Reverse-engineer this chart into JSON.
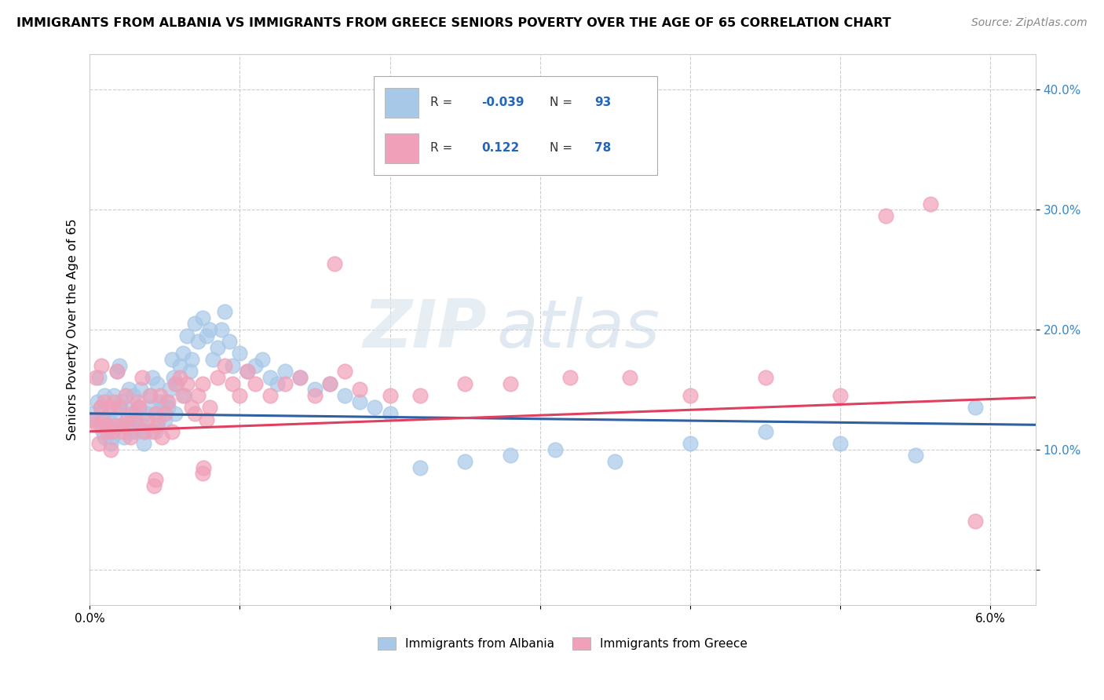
{
  "title": "IMMIGRANTS FROM ALBANIA VS IMMIGRANTS FROM GREECE SENIORS POVERTY OVER THE AGE OF 65 CORRELATION CHART",
  "source": "Source: ZipAtlas.com",
  "ylabel": "Seniors Poverty Over the Age of 65",
  "xlim": [
    0.0,
    6.3
  ],
  "ylim": [
    -3.0,
    43.0
  ],
  "yticks": [
    0.0,
    10.0,
    20.0,
    30.0,
    40.0
  ],
  "ytick_labels": [
    "",
    "10.0%",
    "20.0%",
    "30.0%",
    "40.0%"
  ],
  "xticks": [
    0.0,
    1.0,
    2.0,
    3.0,
    4.0,
    5.0,
    6.0
  ],
  "xtick_labels": [
    "0.0%",
    "",
    "",
    "",
    "",
    "",
    "6.0%"
  ],
  "legend_albania": "Immigrants from Albania",
  "legend_greece": "Immigrants from Greece",
  "R_albania": "-0.039",
  "N_albania": "93",
  "R_greece": "0.122",
  "N_greece": "78",
  "color_albania": "#a8c8e8",
  "color_greece": "#f0a0b8",
  "line_color_albania": "#3060a0",
  "line_color_greece": "#e04060",
  "watermark_zip": "ZIP",
  "watermark_atlas": "atlas",
  "albania_x": [
    0.02,
    0.04,
    0.05,
    0.06,
    0.07,
    0.08,
    0.09,
    0.1,
    0.1,
    0.12,
    0.13,
    0.14,
    0.15,
    0.16,
    0.17,
    0.18,
    0.19,
    0.2,
    0.21,
    0.22,
    0.23,
    0.24,
    0.25,
    0.26,
    0.27,
    0.28,
    0.29,
    0.3,
    0.31,
    0.32,
    0.33,
    0.34,
    0.35,
    0.36,
    0.37,
    0.38,
    0.4,
    0.41,
    0.42,
    0.44,
    0.45,
    0.46,
    0.47,
    0.48,
    0.5,
    0.51,
    0.52,
    0.53,
    0.55,
    0.56,
    0.57,
    0.58,
    0.6,
    0.62,
    0.63,
    0.65,
    0.67,
    0.68,
    0.7,
    0.72,
    0.75,
    0.78,
    0.8,
    0.82,
    0.85,
    0.88,
    0.9,
    0.93,
    0.95,
    1.0,
    1.05,
    1.1,
    1.15,
    1.2,
    1.25,
    1.3,
    1.4,
    1.5,
    1.6,
    1.7,
    1.8,
    1.9,
    2.0,
    2.2,
    2.5,
    2.8,
    3.1,
    3.5,
    4.0,
    4.5,
    5.0,
    5.5,
    5.9
  ],
  "albania_y": [
    13.0,
    12.5,
    14.0,
    16.0,
    12.0,
    13.5,
    11.5,
    14.5,
    11.0,
    12.5,
    13.0,
    10.5,
    11.0,
    14.5,
    12.5,
    16.5,
    13.5,
    17.0,
    14.0,
    12.0,
    11.0,
    13.5,
    12.5,
    15.0,
    11.5,
    12.5,
    14.5,
    13.0,
    11.5,
    12.0,
    13.5,
    15.0,
    12.0,
    10.5,
    11.5,
    13.0,
    14.5,
    13.5,
    16.0,
    11.5,
    15.5,
    12.5,
    14.0,
    13.5,
    12.5,
    14.0,
    13.5,
    15.0,
    17.5,
    16.0,
    13.0,
    15.5,
    17.0,
    18.0,
    14.5,
    19.5,
    16.5,
    17.5,
    20.5,
    19.0,
    21.0,
    19.5,
    20.0,
    17.5,
    18.5,
    20.0,
    21.5,
    19.0,
    17.0,
    18.0,
    16.5,
    17.0,
    17.5,
    16.0,
    15.5,
    16.5,
    16.0,
    15.0,
    15.5,
    14.5,
    14.0,
    13.5,
    13.0,
    8.5,
    9.0,
    9.5,
    10.0,
    9.0,
    10.5,
    11.5,
    10.5,
    9.5,
    13.5
  ],
  "greece_x": [
    0.02,
    0.04,
    0.05,
    0.06,
    0.07,
    0.08,
    0.09,
    0.1,
    0.11,
    0.12,
    0.13,
    0.14,
    0.15,
    0.16,
    0.17,
    0.18,
    0.2,
    0.21,
    0.22,
    0.24,
    0.25,
    0.27,
    0.28,
    0.3,
    0.32,
    0.33,
    0.35,
    0.36,
    0.38,
    0.4,
    0.42,
    0.44,
    0.45,
    0.47,
    0.48,
    0.5,
    0.52,
    0.55,
    0.57,
    0.6,
    0.62,
    0.65,
    0.68,
    0.7,
    0.72,
    0.75,
    0.78,
    0.8,
    0.85,
    0.9,
    0.95,
    1.0,
    1.05,
    1.1,
    1.2,
    1.3,
    1.4,
    1.5,
    1.6,
    1.7,
    1.8,
    2.0,
    2.2,
    2.5,
    2.8,
    3.2,
    3.6,
    4.0,
    4.5,
    5.0,
    5.3,
    5.6,
    5.9,
    1.63,
    0.43,
    0.44,
    0.75,
    0.76
  ],
  "greece_y": [
    12.5,
    16.0,
    12.0,
    10.5,
    13.5,
    17.0,
    12.5,
    14.0,
    12.0,
    11.5,
    13.5,
    10.0,
    11.5,
    14.0,
    12.0,
    16.5,
    13.5,
    12.0,
    11.5,
    14.5,
    12.5,
    11.0,
    13.0,
    12.5,
    14.0,
    13.5,
    16.0,
    11.5,
    12.5,
    14.5,
    11.5,
    13.0,
    12.0,
    14.5,
    11.0,
    13.0,
    14.0,
    11.5,
    15.5,
    16.0,
    14.5,
    15.5,
    13.5,
    13.0,
    14.5,
    15.5,
    12.5,
    13.5,
    16.0,
    17.0,
    15.5,
    14.5,
    16.5,
    15.5,
    14.5,
    15.5,
    16.0,
    14.5,
    15.5,
    16.5,
    15.0,
    14.5,
    14.5,
    15.5,
    15.5,
    16.0,
    16.0,
    14.5,
    16.0,
    14.5,
    29.5,
    30.5,
    4.0,
    25.5,
    7.0,
    7.5,
    8.0,
    8.5
  ]
}
